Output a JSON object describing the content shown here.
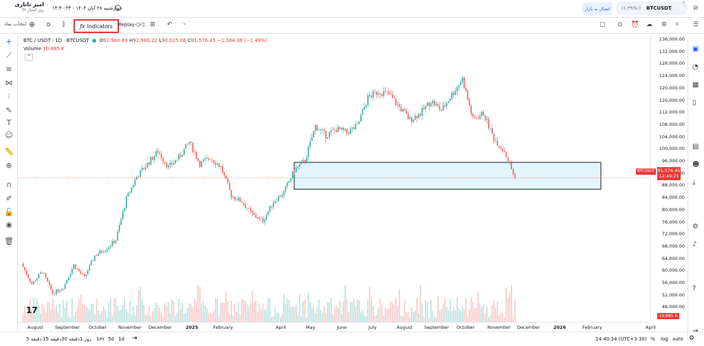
{
  "user": {
    "name": "امیر تاتاری",
    "subtitle": "۳۶ روز امتیاز"
  },
  "header": {
    "date": "چهارشنبه ۲۸ آبان ۱۴۰۴ - ۱۴:۴۰:۳۴",
    "connect_label": "اتصال به بازار",
    "pair": "BTCUSDT",
    "pair_change": "(۱.۴۹%-)"
  },
  "toolbar": {
    "symbol_search_label": "انتخاب نماد",
    "interval": "D",
    "indicators_label": "Indicators",
    "replay_label": "Replay"
  },
  "legend": {
    "symbol": "BTC / USDT · 1D · BTCUSDT",
    "o_label": "O",
    "o": "92,960.83",
    "h_label": "H",
    "h": "92,980.22",
    "l_label": "L",
    "l": "90,025.06",
    "c_label": "C",
    "c": "91,576.45",
    "change": "−1,384.38 (−1.49%)",
    "volume_label": "Volume",
    "volume": "10.885 K"
  },
  "price_axis": {
    "labels": [
      "136,000.00",
      "132,000.00",
      "128,000.00",
      "124,000.00",
      "120,000.00",
      "116,000.00",
      "112,000.00",
      "108,000.00",
      "104,000.00",
      "100,000.00",
      "96,000.00",
      "92,000.00",
      "88,000.00",
      "84,000.00",
      "80,000.00",
      "76,000.00",
      "72,000.00",
      "68,000.00",
      "64,000.00",
      "60,000.00",
      "56,000.00",
      "52,000.00",
      "48,000.00"
    ],
    "last_price": "91,576.45",
    "countdown": "12:49:25",
    "symbol_tag": "BTCUSDT",
    "volume_tag": "10.885 K"
  },
  "time_axis": {
    "labels": [
      "August",
      "September",
      "October",
      "November",
      "December",
      "2025",
      "February",
      "April",
      "May",
      "June",
      "July",
      "August",
      "September",
      "October",
      "November",
      "December",
      "2026",
      "February",
      "April"
    ]
  },
  "bottombar": {
    "ranges": [
      "5 دقیقه",
      "15 دقیقه",
      "30 دقیقه",
      "1 روز",
      "1m",
      "5d",
      "1d"
    ],
    "clock": "14:40:34 (UTC+3:30)",
    "percent": "%",
    "log": "log",
    "auto": "auto"
  },
  "chart_data": {
    "type": "candlestick",
    "title": "BTC / USDT · 1D · BTCUSDT",
    "ylim": [
      46000,
      137000
    ],
    "x_labels": [
      "August",
      "September",
      "October",
      "November",
      "December",
      "2025",
      "February",
      "April",
      "May",
      "June",
      "July",
      "August",
      "September",
      "October",
      "November",
      "December",
      "2026",
      "February",
      "April"
    ],
    "series": [
      {
        "name": "BTCUSDT",
        "close_path": [
          [
            0,
            64500
          ],
          [
            6,
            58000
          ],
          [
            12,
            62000
          ],
          [
            18,
            55000
          ],
          [
            24,
            57000
          ],
          [
            30,
            64000
          ],
          [
            36,
            60000
          ],
          [
            42,
            67000
          ],
          [
            48,
            69000
          ],
          [
            54,
            72000
          ],
          [
            60,
            85000
          ],
          [
            66,
            92000
          ],
          [
            72,
            96000
          ],
          [
            78,
            100000
          ],
          [
            84,
            95000
          ],
          [
            90,
            98000
          ],
          [
            96,
            103000
          ],
          [
            102,
            96000
          ],
          [
            108,
            98000
          ],
          [
            114,
            95000
          ],
          [
            120,
            86000
          ],
          [
            126,
            84000
          ],
          [
            132,
            80000
          ],
          [
            138,
            78000
          ],
          [
            144,
            84000
          ],
          [
            150,
            87000
          ],
          [
            156,
            94000
          ],
          [
            162,
            97000
          ],
          [
            168,
            108000
          ],
          [
            174,
            105000
          ],
          [
            180,
            107000
          ],
          [
            186,
            106000
          ],
          [
            192,
            108000
          ],
          [
            198,
            117000
          ],
          [
            204,
            119000
          ],
          [
            210,
            118000
          ],
          [
            216,
            114000
          ],
          [
            222,
            110000
          ],
          [
            228,
            112000
          ],
          [
            234,
            116000
          ],
          [
            240,
            113000
          ],
          [
            246,
            118000
          ],
          [
            252,
            123000
          ],
          [
            258,
            110000
          ],
          [
            264,
            112000
          ],
          [
            270,
            104000
          ],
          [
            276,
            100000
          ],
          [
            282,
            91576
          ]
        ]
      }
    ],
    "highlight_zone": [
      88000,
      96500
    ],
    "last_price": 91576.45
  }
}
